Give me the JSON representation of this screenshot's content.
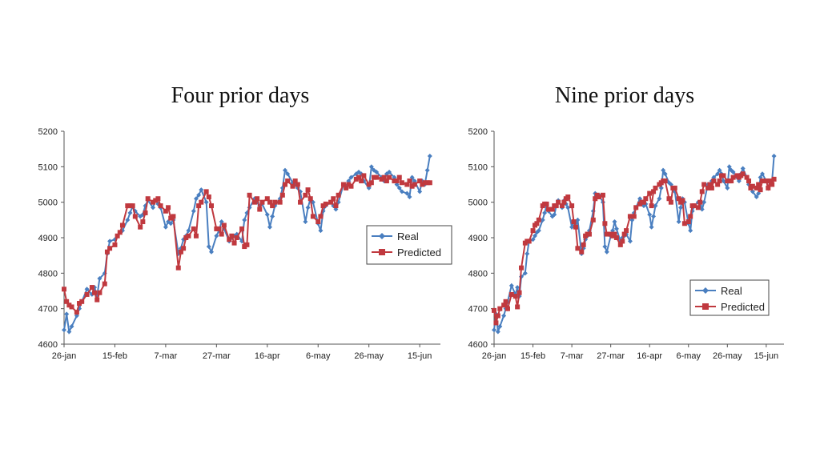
{
  "titles": {
    "left": "Four prior days",
    "right": "Nine prior days"
  },
  "chart_data": [
    {
      "type": "line",
      "title": "Four prior days",
      "xlabel": "",
      "ylabel": "",
      "x_ticks": [
        "26-jan",
        "15-feb",
        "7-mar",
        "27-mar",
        "16-apr",
        "6-may",
        "26-may",
        "15-jun"
      ],
      "x_range_days": [
        0,
        145
      ],
      "ylim": [
        4600,
        5200
      ],
      "y_ticks": [
        4600,
        4700,
        4800,
        4900,
        5000,
        5100,
        5200
      ],
      "legend_position": "middle-right",
      "grid": false,
      "x_unit_note": "x values are days after 26-jan",
      "series": [
        {
          "name": "Real",
          "color": "#4a7fc0",
          "marker": "diamond",
          "x": [
            0,
            1,
            2,
            3,
            5,
            6,
            7,
            9,
            11,
            12,
            13,
            14,
            16,
            17,
            18,
            20,
            21,
            22,
            23,
            25,
            26,
            27,
            28,
            30,
            31,
            32,
            33,
            35,
            36,
            37,
            38,
            40,
            41,
            42,
            43,
            45,
            46,
            47,
            48,
            49,
            51,
            52,
            53,
            54,
            56,
            57,
            58,
            60,
            61,
            62,
            63,
            65,
            66,
            67,
            68,
            70,
            71,
            72,
            73,
            75,
            76,
            77,
            78,
            80,
            81,
            82,
            83,
            85,
            86,
            87,
            88,
            90,
            91,
            92,
            93,
            95,
            96,
            97,
            98,
            100,
            101,
            102,
            103,
            105,
            106,
            107,
            108,
            110,
            111,
            112,
            113,
            115,
            116,
            117,
            118,
            120,
            121,
            122,
            123,
            125,
            126,
            127,
            128,
            130,
            131,
            132,
            133,
            135,
            136,
            137,
            138,
            140,
            141,
            142,
            143,
            144
          ],
          "y": [
            4640,
            4685,
            4635,
            4650,
            4680,
            4700,
            4720,
            4755,
            4740,
            4760,
            4735,
            4785,
            4800,
            4855,
            4890,
            4895,
            4905,
            4915,
            4920,
            4950,
            4970,
            4990,
            4975,
            4960,
            4965,
            4990,
            5005,
            4985,
            5005,
            4995,
            4985,
            4930,
            4945,
            4940,
            4950,
            4855,
            4870,
            4895,
            4905,
            4920,
            4975,
            5010,
            5020,
            5035,
            5000,
            4875,
            4860,
            4905,
            4920,
            4945,
            4925,
            4890,
            4900,
            4905,
            4910,
            4890,
            4950,
            4970,
            4985,
            5010,
            5000,
            4990,
            4995,
            4965,
            4930,
            4960,
            4990,
            5010,
            5040,
            5090,
            5080,
            5055,
            5050,
            5040,
            5030,
            4945,
            4985,
            5010,
            5000,
            4940,
            4920,
            4975,
            4990,
            5000,
            4990,
            4980,
            5000,
            5050,
            5045,
            5060,
            5070,
            5080,
            5085,
            5080,
            5060,
            5040,
            5100,
            5090,
            5085,
            5070,
            5060,
            5080,
            5085,
            5070,
            5050,
            5040,
            5030,
            5025,
            5015,
            5070,
            5060,
            5030,
            5060,
            5050,
            5090,
            5130
          ]
        },
        {
          "name": "Predicted",
          "color": "#c0393f",
          "marker": "square",
          "x": [
            0,
            1,
            2,
            3,
            5,
            6,
            7,
            9,
            11,
            12,
            13,
            14,
            16,
            17,
            18,
            20,
            21,
            22,
            23,
            25,
            26,
            27,
            28,
            30,
            31,
            32,
            33,
            35,
            36,
            37,
            38,
            40,
            41,
            42,
            43,
            45,
            46,
            47,
            48,
            49,
            51,
            52,
            53,
            54,
            56,
            57,
            58,
            60,
            61,
            62,
            63,
            65,
            66,
            67,
            68,
            70,
            71,
            72,
            73,
            75,
            76,
            77,
            78,
            80,
            81,
            82,
            83,
            85,
            86,
            87,
            88,
            90,
            91,
            92,
            93,
            95,
            96,
            97,
            98,
            100,
            101,
            102,
            103,
            105,
            106,
            107,
            108,
            110,
            111,
            112,
            113,
            115,
            116,
            117,
            118,
            120,
            121,
            122,
            123,
            125,
            126,
            127,
            128,
            130,
            131,
            132,
            133,
            135,
            136,
            137,
            138,
            140,
            141,
            142,
            143,
            144
          ],
          "y": [
            4755,
            4720,
            4710,
            4705,
            4690,
            4715,
            4720,
            4740,
            4760,
            4745,
            4725,
            4745,
            4770,
            4860,
            4870,
            4880,
            4905,
            4915,
            4935,
            4990,
            4990,
            4990,
            4960,
            4930,
            4945,
            4970,
            5010,
            5000,
            5005,
            5010,
            4990,
            4975,
            4985,
            4955,
            4960,
            4815,
            4860,
            4870,
            4900,
            4905,
            4925,
            4905,
            4990,
            5000,
            5030,
            5015,
            4990,
            4925,
            4925,
            4910,
            4935,
            4895,
            4905,
            4885,
            4900,
            4925,
            4875,
            4880,
            5020,
            5000,
            5010,
            4980,
            5000,
            5010,
            5000,
            4990,
            5000,
            5000,
            5020,
            5050,
            5060,
            5045,
            5060,
            5050,
            5000,
            5020,
            5035,
            5010,
            4960,
            4945,
            4960,
            4990,
            4995,
            5000,
            5010,
            4990,
            5020,
            5050,
            5040,
            5050,
            5045,
            5065,
            5070,
            5060,
            5075,
            5050,
            5055,
            5070,
            5070,
            5065,
            5070,
            5060,
            5070,
            5060,
            5060,
            5070,
            5055,
            5050,
            5060,
            5045,
            5050,
            5060,
            5050,
            5055,
            5055,
            5055
          ]
        }
      ]
    },
    {
      "type": "line",
      "title": "Nine prior days",
      "xlabel": "",
      "ylabel": "",
      "x_ticks": [
        "26-jan",
        "15-feb",
        "7-mar",
        "27-mar",
        "16-apr",
        "6-may",
        "26-may",
        "15-jun"
      ],
      "x_range_days": [
        0,
        145
      ],
      "ylim": [
        4600,
        5200
      ],
      "y_ticks": [
        4600,
        4700,
        4800,
        4900,
        5000,
        5100,
        5200
      ],
      "legend_position": "lower-right",
      "grid": false,
      "x_unit_note": "x values are days after 26-jan",
      "series": [
        {
          "name": "Real",
          "color": "#4a7fc0",
          "marker": "diamond",
          "x": [
            0,
            1,
            2,
            3,
            5,
            6,
            7,
            9,
            11,
            12,
            13,
            14,
            16,
            17,
            18,
            20,
            21,
            22,
            23,
            25,
            26,
            27,
            28,
            30,
            31,
            32,
            33,
            35,
            36,
            37,
            38,
            40,
            41,
            42,
            43,
            45,
            46,
            47,
            48,
            49,
            51,
            52,
            53,
            54,
            56,
            57,
            58,
            60,
            61,
            62,
            63,
            65,
            66,
            67,
            68,
            70,
            71,
            72,
            73,
            75,
            76,
            77,
            78,
            80,
            81,
            82,
            83,
            85,
            86,
            87,
            88,
            90,
            91,
            92,
            93,
            95,
            96,
            97,
            98,
            100,
            101,
            102,
            103,
            105,
            106,
            107,
            108,
            110,
            111,
            112,
            113,
            115,
            116,
            117,
            118,
            120,
            121,
            122,
            123,
            125,
            126,
            127,
            128,
            130,
            131,
            132,
            133,
            135,
            136,
            137,
            138,
            140,
            141,
            142,
            143,
            144
          ],
          "y": [
            4640,
            4685,
            4635,
            4650,
            4680,
            4700,
            4720,
            4765,
            4740,
            4760,
            4735,
            4790,
            4800,
            4855,
            4890,
            4895,
            4905,
            4915,
            4920,
            4950,
            4970,
            4990,
            4975,
            4960,
            4965,
            4990,
            5005,
            4985,
            5005,
            4995,
            4985,
            4930,
            4945,
            4940,
            4950,
            4855,
            4870,
            4895,
            4905,
            4920,
            4975,
            5025,
            5020,
            5020,
            5000,
            4875,
            4860,
            4905,
            4920,
            4945,
            4925,
            4890,
            4900,
            4905,
            4910,
            4890,
            4950,
            4970,
            4985,
            5010,
            5000,
            4990,
            4995,
            4965,
            4930,
            4960,
            4990,
            5010,
            5040,
            5090,
            5080,
            5055,
            5050,
            5040,
            5030,
            4945,
            4985,
            5010,
            5000,
            4940,
            4920,
            4975,
            4990,
            5000,
            4990,
            4980,
            5000,
            5050,
            5045,
            5060,
            5070,
            5080,
            5090,
            5080,
            5060,
            5040,
            5100,
            5090,
            5085,
            5070,
            5060,
            5080,
            5095,
            5070,
            5050,
            5040,
            5030,
            5015,
            5025,
            5070,
            5080,
            5060,
            5040,
            5060,
            5060,
            5130
          ]
        },
        {
          "name": "Predicted",
          "color": "#c0393f",
          "marker": "square",
          "x": [
            0,
            1,
            2,
            3,
            5,
            6,
            7,
            9,
            11,
            12,
            13,
            14,
            16,
            17,
            18,
            20,
            21,
            22,
            23,
            25,
            26,
            27,
            28,
            30,
            31,
            32,
            33,
            35,
            36,
            37,
            38,
            40,
            41,
            42,
            43,
            45,
            46,
            47,
            48,
            49,
            51,
            52,
            53,
            54,
            56,
            57,
            58,
            60,
            61,
            62,
            63,
            65,
            66,
            67,
            68,
            70,
            71,
            72,
            73,
            75,
            76,
            77,
            78,
            80,
            81,
            82,
            83,
            85,
            86,
            87,
            88,
            90,
            91,
            92,
            93,
            95,
            96,
            97,
            98,
            100,
            101,
            102,
            103,
            105,
            106,
            107,
            108,
            110,
            111,
            112,
            113,
            115,
            116,
            117,
            118,
            120,
            121,
            122,
            123,
            125,
            126,
            127,
            128,
            130,
            131,
            132,
            133,
            135,
            136,
            137,
            138,
            140,
            141,
            142,
            143,
            144
          ],
          "y": [
            4695,
            4660,
            4680,
            4700,
            4710,
            4720,
            4700,
            4740,
            4735,
            4705,
            4745,
            4815,
            4885,
            4890,
            4890,
            4920,
            4935,
            4940,
            4950,
            4990,
            4995,
            4995,
            4980,
            4980,
            4990,
            4990,
            5000,
            4990,
            5000,
            5010,
            5015,
            4990,
            4945,
            4930,
            4870,
            4860,
            4880,
            4905,
            4910,
            4910,
            4950,
            5010,
            5020,
            5015,
            5020,
            4940,
            4910,
            4910,
            4905,
            4910,
            4900,
            4880,
            4890,
            4910,
            4920,
            4960,
            4960,
            4960,
            4985,
            4995,
            5000,
            5000,
            5010,
            5025,
            4990,
            5030,
            5040,
            5050,
            5055,
            5060,
            5060,
            5010,
            5000,
            5040,
            5040,
            5010,
            5000,
            5005,
            4940,
            4945,
            4960,
            4990,
            4990,
            4985,
            5000,
            5030,
            5050,
            5040,
            5050,
            5040,
            5060,
            5050,
            5060,
            5075,
            5075,
            5060,
            5060,
            5060,
            5070,
            5075,
            5070,
            5075,
            5080,
            5070,
            5060,
            5040,
            5045,
            5040,
            5050,
            5035,
            5060,
            5060,
            5040,
            5060,
            5050,
            5065
          ]
        }
      ]
    }
  ]
}
